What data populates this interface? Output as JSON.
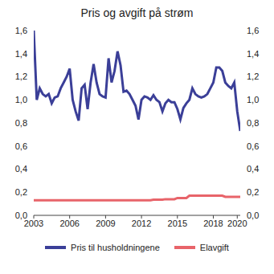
{
  "chart_data": {
    "type": "line",
    "title": "Pris og avgift på strøm",
    "x": [
      2003,
      2003.25,
      2003.5,
      2003.75,
      2004,
      2004.25,
      2004.5,
      2004.75,
      2005,
      2005.25,
      2005.5,
      2005.75,
      2006,
      2006.25,
      2006.5,
      2006.75,
      2007,
      2007.25,
      2007.5,
      2007.75,
      2008,
      2008.25,
      2008.5,
      2008.75,
      2009,
      2009.25,
      2009.5,
      2009.75,
      2010,
      2010.25,
      2010.5,
      2010.75,
      2011,
      2011.25,
      2011.5,
      2011.75,
      2012,
      2012.25,
      2012.5,
      2012.75,
      2013,
      2013.25,
      2013.5,
      2013.75,
      2014,
      2014.25,
      2014.5,
      2014.75,
      2015,
      2015.25,
      2015.5,
      2015.75,
      2016,
      2016.25,
      2016.5,
      2016.75,
      2017,
      2017.25,
      2017.5,
      2017.75,
      2018,
      2018.25,
      2018.5,
      2018.75,
      2019,
      2019.25,
      2019.5,
      2019.75,
      2020,
      2020.25
    ],
    "series": [
      {
        "name": "Pris til husholdningene",
        "color": "#3b3f98",
        "values": [
          1.6,
          1.0,
          1.1,
          1.05,
          1.03,
          1.05,
          0.97,
          1.02,
          1.03,
          1.1,
          1.15,
          1.2,
          1.27,
          1.0,
          0.9,
          0.82,
          1.1,
          1.13,
          0.92,
          1.15,
          1.31,
          1.15,
          1.05,
          1.03,
          1.02,
          1.36,
          1.15,
          1.25,
          1.42,
          1.3,
          1.07,
          1.08,
          1.05,
          1.0,
          0.95,
          0.83,
          1.0,
          1.03,
          1.02,
          1.0,
          1.04,
          1.0,
          0.98,
          0.9,
          0.97,
          1.0,
          0.98,
          0.98,
          0.92,
          0.83,
          0.93,
          0.97,
          1.0,
          1.1,
          1.05,
          1.03,
          1.02,
          1.03,
          1.05,
          1.1,
          1.15,
          1.28,
          1.28,
          1.25,
          1.15,
          1.12,
          1.1,
          1.15,
          0.9,
          0.73
        ]
      },
      {
        "name": "Elavgift",
        "color": "#e8646a",
        "values": [
          0.13,
          0.13,
          0.13,
          0.13,
          0.13,
          0.13,
          0.13,
          0.13,
          0.13,
          0.13,
          0.13,
          0.13,
          0.13,
          0.13,
          0.13,
          0.13,
          0.13,
          0.13,
          0.13,
          0.13,
          0.13,
          0.13,
          0.13,
          0.13,
          0.13,
          0.13,
          0.13,
          0.13,
          0.13,
          0.13,
          0.13,
          0.13,
          0.13,
          0.13,
          0.13,
          0.13,
          0.13,
          0.13,
          0.13,
          0.13,
          0.135,
          0.135,
          0.135,
          0.135,
          0.14,
          0.14,
          0.14,
          0.14,
          0.15,
          0.15,
          0.15,
          0.15,
          0.17,
          0.17,
          0.17,
          0.17,
          0.17,
          0.17,
          0.17,
          0.17,
          0.17,
          0.17,
          0.17,
          0.17,
          0.16,
          0.16,
          0.16,
          0.16,
          0.16,
          0.16
        ]
      }
    ],
    "xlim": [
      2003,
      2020.25
    ],
    "xticks": [
      2003,
      2006,
      2009,
      2012,
      2015,
      2018,
      2020
    ],
    "ylim": [
      0,
      1.6
    ],
    "yticks": [
      {
        "value": 0,
        "label": "0,0"
      },
      {
        "value": 0.2,
        "label": "0,2"
      },
      {
        "value": 0.4,
        "label": "0,4"
      },
      {
        "value": 0.6,
        "label": "0,6"
      },
      {
        "value": 0.8,
        "label": "0,8"
      },
      {
        "value": 1.0,
        "label": "1,0"
      },
      {
        "value": 1.2,
        "label": "1,2"
      },
      {
        "value": 1.4,
        "label": "1,4"
      },
      {
        "value": 1.6,
        "label": "1,6"
      }
    ],
    "grid": false,
    "legend": "bottom"
  }
}
